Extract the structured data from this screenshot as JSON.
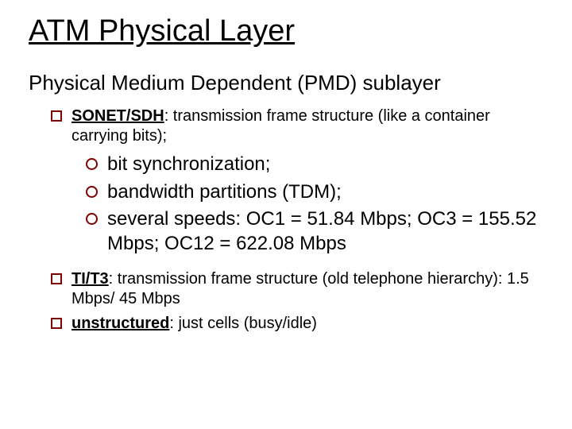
{
  "colors": {
    "bullet_border": "#800000",
    "text": "#000000",
    "background": "#ffffff"
  },
  "typography": {
    "title_fontsize": 38,
    "subheading_fontsize": 26,
    "l1_fontsize": 20,
    "l2_fontsize": 24
  },
  "title": "ATM Physical Layer",
  "subheading": "Physical Medium Dependent (PMD) sublayer",
  "items": [
    {
      "bold": "SONET/SDH",
      "rest": ": transmission frame structure (like a container carrying bits);",
      "sub": [
        "bit synchronization;",
        "bandwidth partitions (TDM);",
        "several speeds: OC1 = 51.84 Mbps; OC3 = 155.52 Mbps; OC12 = 622.08 Mbps"
      ]
    },
    {
      "bold": "TI/T3",
      "rest": ":  transmission frame structure (old telephone hierarchy): 1.5 Mbps/ 45 Mbps"
    },
    {
      "bold": "unstructured",
      "rest": ": just cells (busy/idle)"
    }
  ]
}
